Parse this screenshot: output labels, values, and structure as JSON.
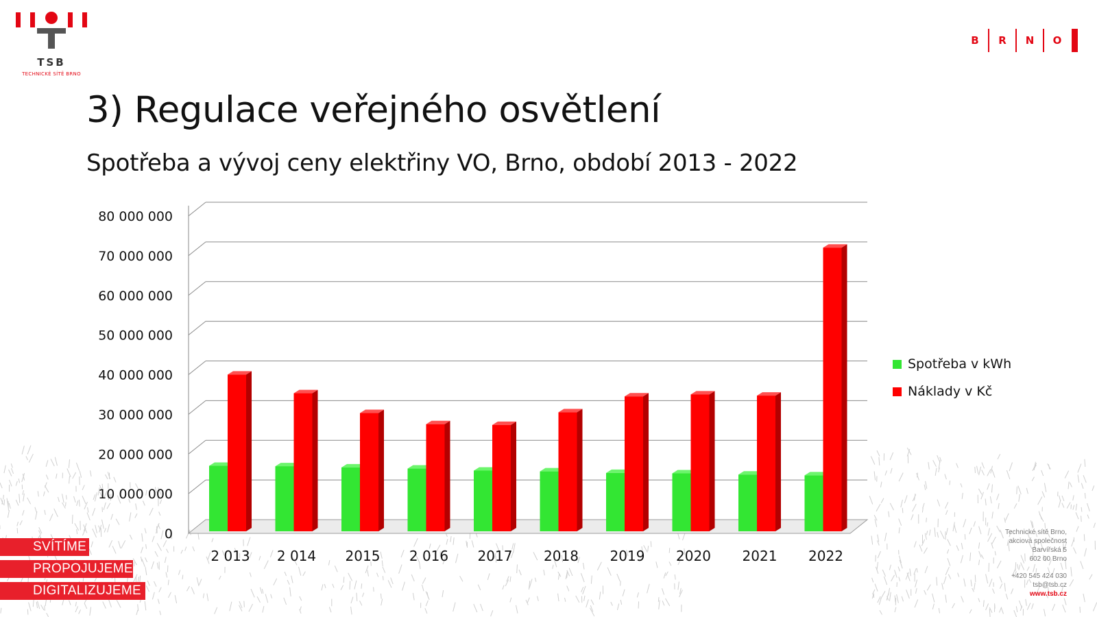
{
  "logo": {
    "name": "TSB",
    "subtitle": "TECHNICKÉ SÍTĚ BRNO"
  },
  "brno_logo": {
    "letters": [
      "B",
      "R",
      "N",
      "O"
    ]
  },
  "title": "3) Regulace veřejného osvětlení",
  "subtitle": "Spotřeba a vývoj ceny elektřiny VO, Brno, období 2013 - 2022",
  "colors": {
    "accent": "#e30613",
    "consumption": "#33e633",
    "cost": "#ff0000"
  },
  "chart_data": {
    "type": "bar",
    "categories": [
      "2 013",
      "2 014",
      "2015",
      "2 016",
      "2017",
      "2018",
      "2019",
      "2020",
      "2021",
      "2022"
    ],
    "series": [
      {
        "name": "Spotřeba v kWh",
        "values": [
          16500000,
          16400000,
          16100000,
          15800000,
          15300000,
          15100000,
          14700000,
          14600000,
          14300000,
          14100000
        ]
      },
      {
        "name": "Náklady v Kč",
        "values": [
          39500000,
          34800000,
          29800000,
          27000000,
          26800000,
          30000000,
          34000000,
          34500000,
          34200000,
          71500000
        ]
      }
    ],
    "y_ticks": [
      "0",
      "10 000 000",
      "20 000 000",
      "30 000 000",
      "40 000 000",
      "50 000 000",
      "60 000 000",
      "70 000 000",
      "80 000 000"
    ],
    "ylim": [
      0,
      80000000
    ],
    "grid": true,
    "legend_position": "right"
  },
  "tags": [
    "SVÍTÍME",
    "PROPOJUJEME",
    "DIGITALIZUJEME"
  ],
  "contact": {
    "company": "Technické sítě Brno,",
    "company2": "akciová společnost",
    "street": "Barvířská 5",
    "city": "602 00 Brno",
    "phone": "+420 545 424 030",
    "email": "tsb@tsb.cz",
    "web": "www.tsb.cz"
  }
}
